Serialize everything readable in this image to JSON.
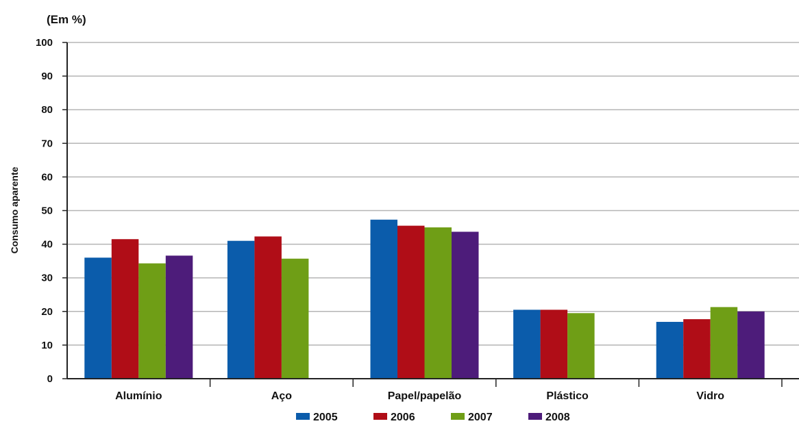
{
  "chart_data": {
    "type": "bar",
    "unit_label": "(Em %)",
    "ylabel": "Consumo aparente",
    "xlabel": "",
    "ylim": [
      0,
      100
    ],
    "yticks": [
      0,
      10,
      20,
      30,
      40,
      50,
      60,
      70,
      80,
      90,
      100
    ],
    "grid": true,
    "legend_position": "bottom",
    "categories": [
      "Alumínio",
      "Aço",
      "Papel/papelão",
      "Plástico",
      "Vidro"
    ],
    "series": [
      {
        "name": "2005",
        "color": "#0b5cab",
        "values": [
          36,
          41,
          47.3,
          20.5,
          16.9
        ]
      },
      {
        "name": "2006",
        "color": "#b00d17",
        "values": [
          41.5,
          42.3,
          45.5,
          20.5,
          17.7
        ]
      },
      {
        "name": "2007",
        "color": "#6f9e16",
        "values": [
          34.3,
          35.7,
          45,
          19.5,
          21.3
        ]
      },
      {
        "name": "2008",
        "color": "#4d1c7a",
        "values": [
          36.6,
          null,
          43.7,
          null,
          20
        ]
      }
    ]
  }
}
